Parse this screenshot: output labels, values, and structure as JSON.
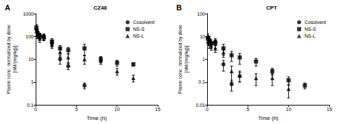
{
  "chart_data": [
    {
      "type": "scatter",
      "panel": "A",
      "title": "CZ48",
      "x_label": "Time (h)",
      "y_label": "Plasm conc. normalized by dose\n[nM/(mg/kg)]",
      "xlim": [
        0,
        15
      ],
      "xticks": [
        0,
        5,
        10,
        15
      ],
      "ylim": [
        0.1,
        1000
      ],
      "yticks": [
        0.1,
        1,
        10,
        100,
        1000
      ],
      "log": "y",
      "legend": "upper right",
      "series": [
        {
          "name": "Cosolvent",
          "color": "#000000",
          "marker": "circle",
          "x": [
            0.083,
            0.25,
            0.5,
            1,
            2,
            3,
            4,
            6
          ],
          "values": [
            200,
            150,
            110,
            100,
            50,
            10,
            5,
            0.7
          ],
          "errors": [
            80,
            50,
            30,
            20,
            15,
            4,
            1.5,
            0.2
          ]
        },
        {
          "name": "NS-S",
          "color": "#000000",
          "marker": "square",
          "x": [
            0.083,
            0.25,
            0.5,
            1,
            2,
            3,
            4,
            6,
            8,
            10,
            12
          ],
          "values": [
            250,
            120,
            100,
            90,
            60,
            30,
            25,
            30,
            10,
            7,
            6
          ],
          "errors": [
            90,
            40,
            30,
            25,
            20,
            10,
            8,
            15,
            3,
            2,
            1
          ]
        },
        {
          "name": "NS-L",
          "color": "#000000",
          "marker": "triangle",
          "x": [
            0.083,
            0.25,
            0.5,
            1,
            2,
            3,
            4,
            6,
            8,
            10,
            12
          ],
          "values": [
            170,
            130,
            80,
            100,
            45,
            20,
            12,
            10,
            9,
            3,
            1.5
          ],
          "errors": [
            60,
            40,
            25,
            30,
            15,
            8,
            5,
            4,
            3,
            1,
            0.5
          ]
        }
      ]
    },
    {
      "type": "scatter",
      "panel": "B",
      "title": "CPT",
      "x_label": "Time (h)",
      "y_label": "Plasm conc. normalized by dose\n[nM/(mg/kg)]",
      "xlim": [
        0,
        15
      ],
      "xticks": [
        0,
        5,
        10,
        15
      ],
      "ylim": [
        0.01,
        100
      ],
      "yticks": [
        0.01,
        0.1,
        1,
        10,
        100
      ],
      "log": "y",
      "legend": "upper right",
      "series": [
        {
          "name": "Cosolvent",
          "color": "#000000",
          "marker": "circle",
          "x": [
            0.083,
            0.25,
            0.5,
            1,
            2,
            3,
            4
          ],
          "values": [
            9,
            7,
            5,
            6,
            0.6,
            0.08,
            0.18
          ],
          "errors": [
            4,
            3,
            2,
            2,
            0.3,
            0.04,
            0.08
          ]
        },
        {
          "name": "NS-S",
          "color": "#000000",
          "marker": "square",
          "x": [
            0.083,
            0.25,
            0.5,
            1,
            2,
            3,
            4,
            6,
            8,
            10,
            12
          ],
          "values": [
            8,
            7,
            5,
            5,
            3,
            1.5,
            1.2,
            0.8,
            0.3,
            0.12,
            0.07
          ],
          "errors": [
            3,
            3,
            2,
            2,
            1.5,
            0.7,
            0.6,
            0.3,
            0.1,
            0.05,
            0.02
          ]
        },
        {
          "name": "NS-L",
          "color": "#000000",
          "marker": "triangle",
          "x": [
            0.083,
            0.25,
            0.5,
            1,
            2,
            3,
            4,
            6,
            8,
            10
          ],
          "values": [
            6,
            5,
            4,
            3,
            2,
            0.3,
            0.2,
            0.15,
            0.15,
            0.05
          ],
          "errors": [
            2,
            2,
            1.5,
            1,
            0.8,
            0.2,
            0.1,
            0.08,
            0.08,
            0.03
          ]
        }
      ]
    }
  ]
}
